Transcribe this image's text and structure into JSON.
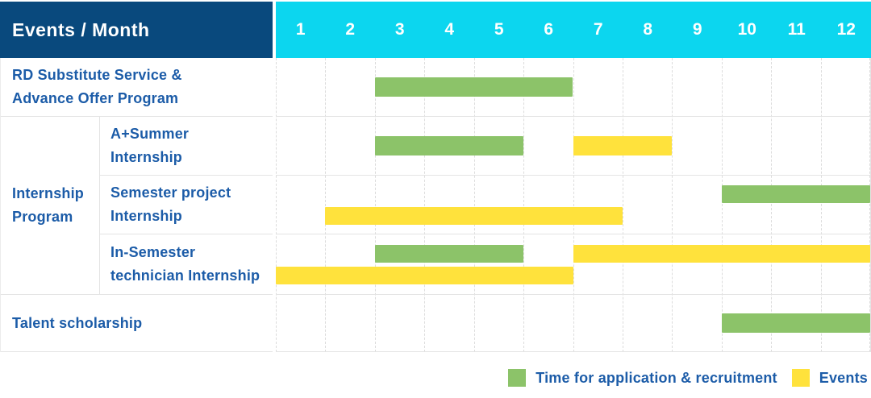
{
  "colors": {
    "navy": "#09497D",
    "cyan": "#0CD6EF",
    "green": "#8CC369",
    "yellow": "#FFE23C",
    "text_blue": "#1C5CA8",
    "grid": "#E4E4E4"
  },
  "header": {
    "events_month_label": "Events / Month",
    "months": [
      "1",
      "2",
      "3",
      "4",
      "5",
      "6",
      "7",
      "8",
      "9",
      "10",
      "11",
      "12"
    ]
  },
  "legend": [
    {
      "swatch": "green",
      "label": "Time for application & recruitment"
    },
    {
      "swatch": "yellow",
      "label": "Events"
    }
  ],
  "chart_data": {
    "type": "gantt",
    "x_axis": {
      "label": "Month",
      "range": [
        1,
        12
      ]
    },
    "group_label": "Internship Program",
    "bar_meaning": {
      "green": "Time for application & recruitment",
      "yellow": "Events"
    },
    "rows": [
      {
        "id": "rd-substitute-service-advance-offer-program",
        "label": "RD Substitute Service &\nAdvance Offer Program",
        "group": null,
        "lines": [
          [
            {
              "color": "green",
              "start": 3,
              "end": 7
            }
          ]
        ]
      },
      {
        "id": "a-plus-summer-internship",
        "label": "A+Summer\nInternship",
        "group": "Internship Program",
        "lines": [
          [
            {
              "color": "green",
              "start": 3,
              "end": 6
            },
            {
              "color": "yellow",
              "start": 7,
              "end": 9
            }
          ]
        ]
      },
      {
        "id": "semester-project-internship",
        "label": "Semester project\nInternship",
        "group": "Internship Program",
        "lines": [
          [
            {
              "color": "green",
              "start": 10,
              "end": 13
            }
          ],
          [
            {
              "color": "yellow",
              "start": 2,
              "end": 8
            }
          ]
        ]
      },
      {
        "id": "in-semester-technician-internship",
        "label": "In-Semester\ntechnician Internship",
        "group": "Internship Program",
        "lines": [
          [
            {
              "color": "green",
              "start": 3,
              "end": 6
            },
            {
              "color": "yellow",
              "start": 7,
              "end": 13
            }
          ],
          [
            {
              "color": "yellow",
              "start": 1,
              "end": 7
            }
          ]
        ]
      },
      {
        "id": "talent-scholarship",
        "label": "Talent scholarship",
        "group": null,
        "lines": [
          [
            {
              "color": "green",
              "start": 10,
              "end": 13
            }
          ]
        ]
      }
    ]
  }
}
